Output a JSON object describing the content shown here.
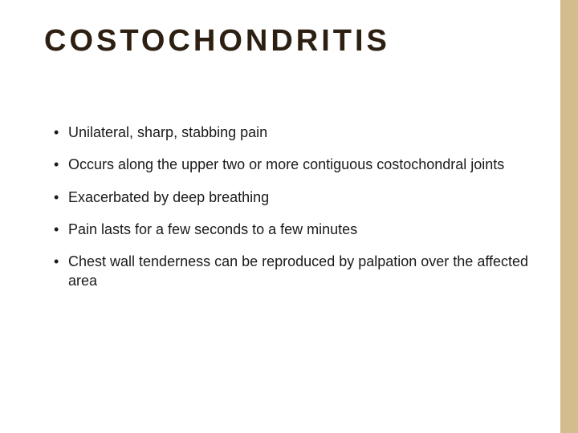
{
  "slide": {
    "title": "COSTOCHONDRITIS",
    "title_color": "#2d2012",
    "title_fontsize": 38,
    "title_letter_spacing": 4,
    "bullets": [
      "Unilateral, sharp, stabbing pain",
      "Occurs along the upper two or more contiguous costochondral joints",
      "Exacerbated by deep breathing",
      "Pain lasts for a few seconds to a few minutes",
      "Chest wall tenderness can be reproduced by palpation over the affected area"
    ],
    "bullet_fontsize": 18,
    "bullet_line_height": 1.35,
    "bullet_color": "#1a1a1a",
    "bullet_marker_color": "#1a1a1a",
    "background_color": "#ffffff",
    "accent_bar_color": "#d3bc8d",
    "accent_bar_width": 22
  }
}
